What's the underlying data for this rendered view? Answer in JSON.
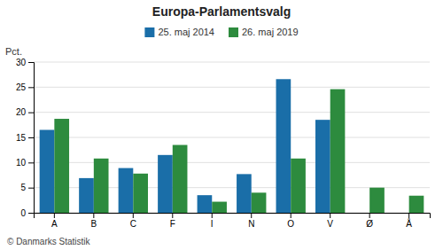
{
  "chart_data": {
    "type": "bar",
    "title": "Europa-Parlamentsvalg",
    "categories": [
      "A",
      "B",
      "C",
      "F",
      "I",
      "N",
      "O",
      "V",
      "Ø",
      "Å"
    ],
    "series": [
      {
        "name": "25. maj 2014",
        "color": "#1a6ea8",
        "values": [
          16.5,
          6.9,
          8.9,
          11.5,
          3.5,
          7.7,
          26.6,
          18.5,
          0,
          0
        ]
      },
      {
        "name": "26. maj 2019",
        "color": "#2d8b3e",
        "values": [
          18.7,
          10.8,
          7.8,
          13.5,
          2.2,
          4.0,
          10.8,
          24.6,
          5.0,
          3.4
        ]
      }
    ],
    "ylabel": "Pct.",
    "footer": "© Danmarks Statistik",
    "ylim": [
      0,
      30
    ],
    "yticks": [
      0,
      5,
      10,
      15,
      20,
      25,
      30
    ],
    "grid": true,
    "legend": "top"
  }
}
